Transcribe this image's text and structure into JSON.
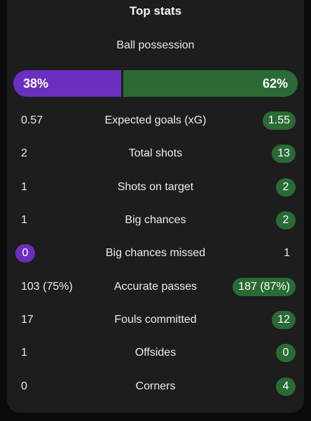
{
  "title": "Top stats",
  "possession": {
    "label": "Ball possession",
    "home": "38%",
    "away": "62%",
    "home_fraction": 0.38
  },
  "colors": {
    "home": "#6b2fc0",
    "away": "#2a6b35"
  },
  "stats": [
    {
      "label": "Expected goals (xG)",
      "home": "0.57",
      "away": "1.55",
      "winner": "away"
    },
    {
      "label": "Total shots",
      "home": "2",
      "away": "13",
      "winner": "away"
    },
    {
      "label": "Shots on target",
      "home": "1",
      "away": "2",
      "winner": "away"
    },
    {
      "label": "Big chances",
      "home": "1",
      "away": "2",
      "winner": "away"
    },
    {
      "label": "Big chances missed",
      "home": "0",
      "away": "1",
      "winner": "home"
    },
    {
      "label": "Accurate passes",
      "home": "103 (75%)",
      "away": "187 (87%)",
      "winner": "away"
    },
    {
      "label": "Fouls committed",
      "home": "17",
      "away": "12",
      "winner": "away"
    },
    {
      "label": "Offsides",
      "home": "1",
      "away": "0",
      "winner": "away"
    },
    {
      "label": "Corners",
      "home": "0",
      "away": "4",
      "winner": "away"
    }
  ]
}
